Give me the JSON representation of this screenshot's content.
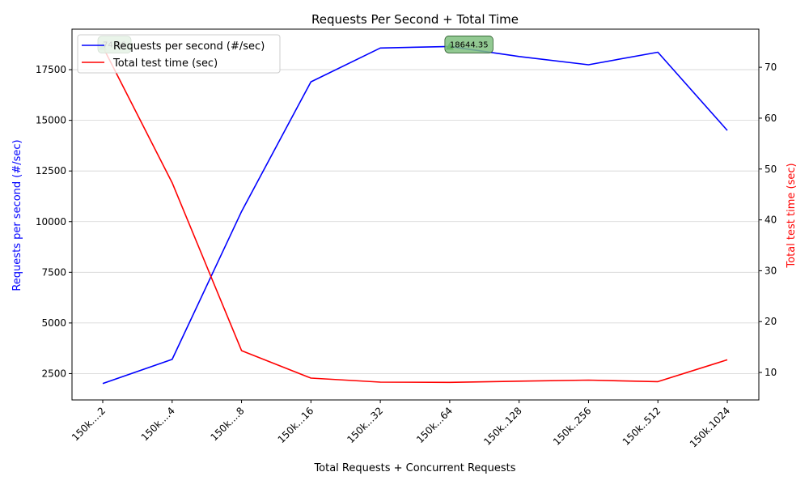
{
  "chart_data": {
    "type": "line",
    "title": "Requests Per Second + Total Time",
    "xlabel": "Total Requests + Concurrent Requests",
    "ylabel_left": "Requests per second (#/sec)",
    "ylabel_right": "Total test time (sec)",
    "categories": [
      "150k....2",
      "150k....4",
      "150k....8",
      "150k...16",
      "150k...32",
      "150k...64",
      "150k..128",
      "150k..256",
      "150k..512",
      "150k.1024"
    ],
    "ylim_left": [
      1200,
      19500
    ],
    "ylim_right": [
      4.6,
      77.5
    ],
    "yticks_left": [
      2500,
      5000,
      7500,
      10000,
      12500,
      15000,
      17500
    ],
    "yticks_left_labels": [
      "2500",
      "5000",
      "7500",
      "10000",
      "12500",
      "15000",
      "17500"
    ],
    "yticks_right": [
      10,
      20,
      30,
      40,
      50,
      60,
      70
    ],
    "yticks_right_labels": [
      "10",
      "20",
      "30",
      "40",
      "50",
      "60",
      "70"
    ],
    "grid": "horizontal",
    "legend_position": "top-left",
    "series": [
      {
        "name": "Requests per second (#/sec)",
        "axis": "left",
        "color": "#0000ff",
        "values": [
          2010,
          3200,
          10500,
          16900,
          18570,
          18644.35,
          18150,
          17740,
          18360,
          14500
        ]
      },
      {
        "name": "Total test time (sec)",
        "axis": "right",
        "color": "#ff0000",
        "values": [
          74.06,
          47.3,
          14.3,
          8.9,
          8.1,
          8.05,
          8.3,
          8.5,
          8.2,
          12.5
        ]
      }
    ],
    "annotations": [
      {
        "text": "74.06",
        "category_index": 0,
        "axis": "right",
        "value": 74.06
      },
      {
        "text": "18644.35",
        "category_index": 5,
        "axis": "left",
        "value": 18644.35
      }
    ],
    "colors": {
      "left_axis_label": "#0000ff",
      "right_axis_label": "#ff0000",
      "annotation_box": "#7fbf7f",
      "annotation_marker": "#008000",
      "grid": "#d3d3d3"
    }
  }
}
